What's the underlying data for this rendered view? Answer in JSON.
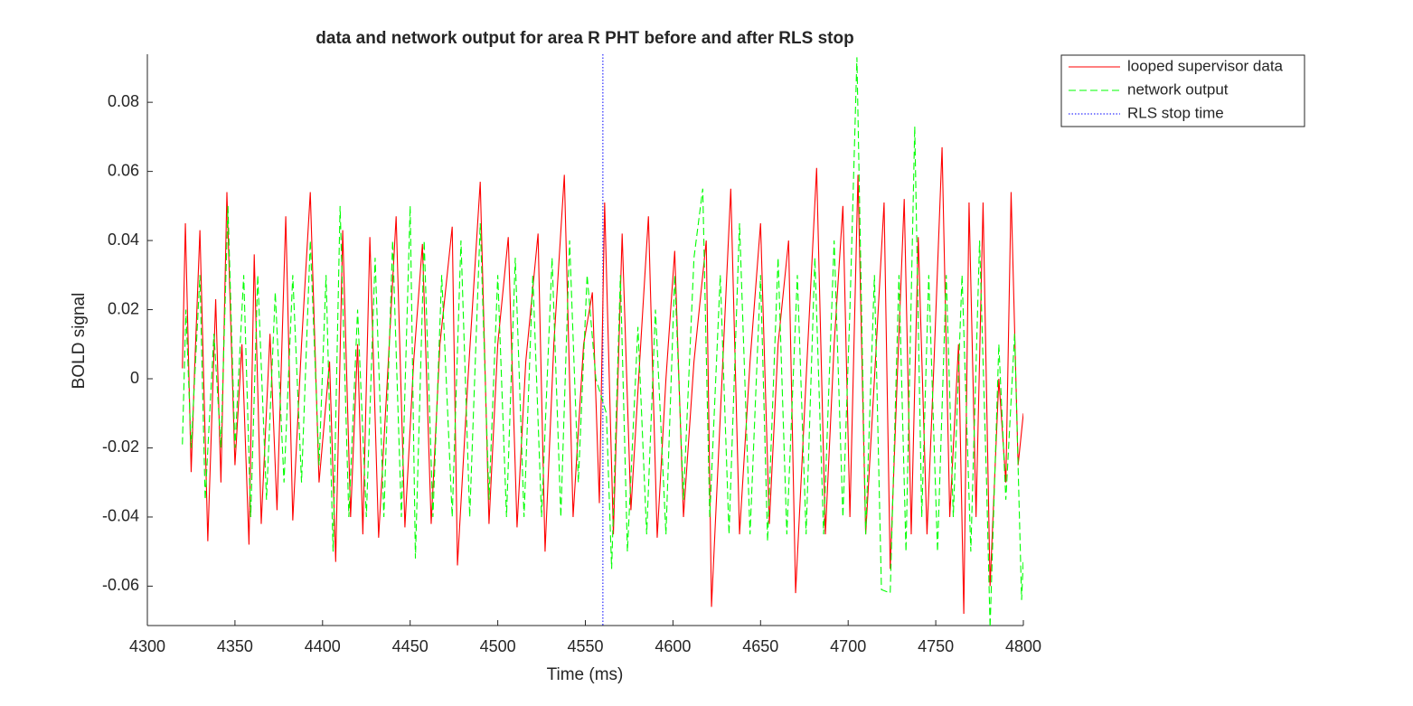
{
  "chart_data": {
    "type": "line",
    "title": "data and network output for area R PHT before and after RLS stop",
    "xlabel": "Time (ms)",
    "ylabel": "BOLD signal",
    "xlim": [
      4300,
      4800
    ],
    "ylim": [
      -0.0714,
      0.0939
    ],
    "xticks": [
      4300,
      4350,
      4400,
      4450,
      4500,
      4550,
      4600,
      4650,
      4700,
      4750,
      4800
    ],
    "yticks": [
      -0.06,
      -0.04,
      -0.02,
      0,
      0.02,
      0.04,
      0.06,
      0.08
    ],
    "grid": false,
    "legend_location": "northeastoutside",
    "series": [
      {
        "name": "looped supervisor data",
        "color": "#ff0000",
        "dash": "solid",
        "x": [
          4320,
          4321.7,
          4325,
          4327,
          4330,
          4334.5,
          4339,
          4342,
          4345.4,
          4350,
          4354,
          4358,
          4361,
          4365,
          4370,
          4374,
          4379,
          4383,
          4388,
          4393,
          4398,
          4404,
          4407.5,
          4411.5,
          4416,
          4420,
          4423,
          4427,
          4432,
          4437,
          4442,
          4447,
          4452,
          4457,
          4462,
          4467,
          4474,
          4477,
          4483,
          4490,
          4495,
          4500,
          4506,
          4511,
          4516,
          4523,
          4527,
          4532,
          4538,
          4543,
          4549,
          4554,
          4558,
          4561,
          4566,
          4571,
          4576,
          4581,
          4586,
          4591,
          4596,
          4601,
          4606,
          4612,
          4619,
          4622,
          4628,
          4633,
          4638,
          4644,
          4650,
          4655,
          4660,
          4666,
          4670,
          4676,
          4682,
          4687,
          4692,
          4697,
          4701,
          4705.6,
          4710,
          4715,
          4720.5,
          4724,
          4728,
          4732,
          4736,
          4740,
          4745,
          4749,
          4753.6,
          4758,
          4763,
          4766,
          4769,
          4773,
          4777,
          4781,
          4786,
          4790,
          4793,
          4797,
          4800
        ],
        "values": [
          0.003,
          0.045,
          -0.027,
          0.003,
          0.043,
          -0.047,
          0.023,
          -0.03,
          0.054,
          -0.025,
          0.01,
          -0.048,
          0.036,
          -0.042,
          0.013,
          -0.038,
          0.047,
          -0.041,
          0.01,
          0.054,
          -0.03,
          0.005,
          -0.053,
          0.043,
          -0.04,
          0.01,
          -0.045,
          0.041,
          -0.046,
          0.0,
          0.047,
          -0.043,
          0.005,
          0.039,
          -0.042,
          0.01,
          0.044,
          -0.054,
          0.0,
          0.057,
          -0.042,
          0.01,
          0.041,
          -0.043,
          0.005,
          0.042,
          -0.05,
          0.01,
          0.059,
          -0.04,
          0.01,
          0.025,
          -0.036,
          0.051,
          -0.045,
          0.042,
          -0.038,
          0.005,
          0.047,
          -0.046,
          0.0,
          0.037,
          -0.04,
          0.005,
          0.04,
          -0.066,
          0.0,
          0.055,
          -0.045,
          0.005,
          0.045,
          -0.042,
          0.01,
          0.04,
          -0.062,
          0.0,
          0.061,
          -0.045,
          0.01,
          0.05,
          -0.04,
          0.059,
          -0.045,
          0.0,
          0.051,
          -0.055,
          0.0,
          0.052,
          -0.045,
          0.041,
          -0.045,
          0.005,
          0.067,
          -0.04,
          0.01,
          -0.068,
          0.051,
          -0.04,
          0.051,
          -0.06,
          0.0,
          -0.03,
          0.054,
          -0.025,
          -0.01
        ]
      },
      {
        "name": "network output",
        "color": "#00ff00",
        "dash": "dashed",
        "x": [
          4320,
          4322,
          4325,
          4330,
          4333,
          4338,
          4342,
          4346,
          4350,
          4355,
          4359,
          4363,
          4368,
          4373,
          4378,
          4383,
          4388,
          4393,
          4398,
          4402,
          4406,
          4410,
          4415,
          4420,
          4425,
          4430,
          4435,
          4440,
          4445,
          4450,
          4453,
          4458,
          4463,
          4468,
          4474,
          4479,
          4484,
          4490,
          4495,
          4500,
          4505,
          4510,
          4515,
          4520,
          4525,
          4531,
          4536,
          4541,
          4546,
          4551,
          4556,
          4562,
          4565,
          4570,
          4574,
          4580,
          4585,
          4590,
          4596,
          4601,
          4606,
          4612,
          4617,
          4621,
          4627,
          4632,
          4638,
          4644,
          4650,
          4654,
          4660,
          4665,
          4671,
          4676,
          4681,
          4686,
          4692,
          4697,
          4701,
          4705,
          4710,
          4715,
          4719,
          4724,
          4729,
          4733,
          4738,
          4742,
          4746,
          4751,
          4756,
          4760,
          4765,
          4770,
          4775,
          4779,
          4781,
          4786,
          4790,
          4795,
          4799,
          4800
        ],
        "values": [
          -0.019,
          0.02,
          -0.02,
          0.03,
          -0.035,
          0.013,
          -0.02,
          0.05,
          -0.02,
          0.03,
          -0.04,
          0.03,
          -0.035,
          0.025,
          -0.03,
          0.03,
          -0.03,
          0.04,
          -0.025,
          0.03,
          -0.05,
          0.05,
          -0.04,
          0.02,
          -0.04,
          0.035,
          -0.04,
          0.04,
          -0.04,
          0.05,
          -0.052,
          0.04,
          -0.04,
          0.03,
          -0.04,
          0.04,
          -0.04,
          0.045,
          -0.035,
          0.03,
          -0.04,
          0.035,
          -0.04,
          0.03,
          -0.04,
          0.035,
          -0.04,
          0.04,
          -0.03,
          0.03,
          0.0,
          -0.01,
          -0.055,
          0.03,
          -0.05,
          0.015,
          -0.045,
          0.02,
          -0.045,
          0.03,
          -0.035,
          0.035,
          0.055,
          -0.04,
          0.03,
          -0.045,
          0.045,
          -0.045,
          0.03,
          -0.047,
          0.035,
          -0.045,
          0.03,
          -0.045,
          0.035,
          -0.045,
          0.04,
          -0.04,
          0.02,
          0.093,
          -0.045,
          0.03,
          -0.061,
          -0.062,
          0.03,
          -0.05,
          0.073,
          -0.04,
          0.03,
          -0.05,
          0.03,
          -0.04,
          0.03,
          -0.05,
          0.04,
          -0.03,
          -0.072,
          0.01,
          -0.035,
          0.013,
          -0.064,
          -0.052
        ]
      }
    ],
    "vlines": [
      {
        "name": "RLS stop time",
        "x": 4560,
        "color": "#0000ff",
        "dash": "dotted"
      }
    ]
  }
}
